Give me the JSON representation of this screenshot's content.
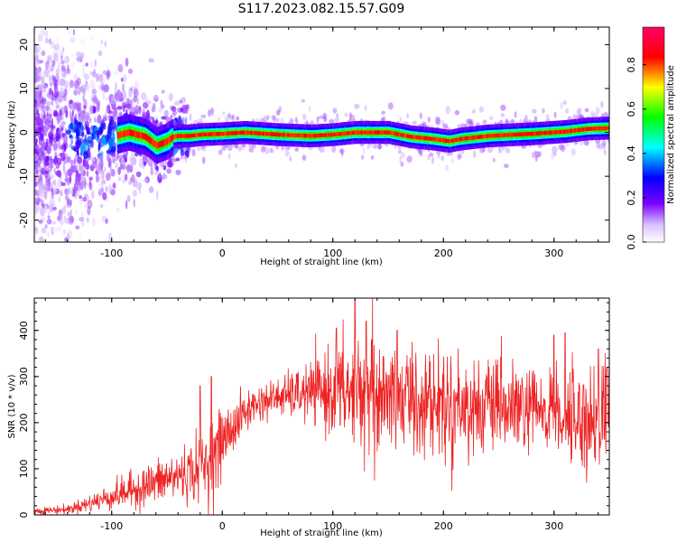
{
  "title": "S117.2023.082.15.57.G09",
  "chart_data": [
    {
      "type": "heatmap",
      "xlabel": "Height of straight line (km)",
      "ylabel": "Frequency (Hz)",
      "xlim": [
        -170,
        350
      ],
      "ylim": [
        -25,
        24
      ],
      "x_ticks": [
        -100,
        0,
        100,
        200,
        300
      ],
      "y_ticks": [
        -20,
        -10,
        0,
        10,
        20
      ],
      "colorbar": {
        "label": "Normalized spectral amplitude",
        "range": [
          0,
          0.97
        ],
        "ticks": [
          0.0,
          0.2,
          0.4,
          0.6,
          0.8
        ],
        "colormap": [
          "#ffffff",
          "#7b00ff",
          "#0000ff",
          "#00ffff",
          "#00ff00",
          "#ffff00",
          "#ff0000",
          "#ff0066"
        ]
      },
      "ridge": {
        "x": [
          -170,
          -140,
          -120,
          -100,
          -85,
          -70,
          -60,
          -50,
          -45,
          -40,
          -30,
          -20,
          0,
          20,
          50,
          80,
          100,
          120,
          150,
          170,
          190,
          205,
          215,
          240,
          280,
          310,
          330,
          350
        ],
        "y": [
          -2,
          -1,
          -2,
          -1,
          0,
          -1,
          -3,
          -2,
          -1,
          -0.8,
          -0.8,
          -0.5,
          -0.3,
          0,
          -0.5,
          -0.8,
          -0.5,
          0,
          0,
          -1,
          -1.5,
          -2,
          -1.5,
          -0.8,
          -0.3,
          0.2,
          0.8,
          1
        ]
      },
      "grid": false
    },
    {
      "type": "line",
      "xlabel": "Height of straight line (km)",
      "ylabel": "SNR (10 * v/v)",
      "xlim": [
        -170,
        350
      ],
      "ylim": [
        0,
        470
      ],
      "x_ticks": [
        -100,
        0,
        100,
        200,
        300
      ],
      "y_ticks": [
        0,
        100,
        200,
        300,
        400
      ],
      "series_color": "#ee2222",
      "envelope": {
        "x": [
          -170,
          -140,
          -120,
          -100,
          -80,
          -60,
          -40,
          -20,
          -10,
          0,
          10,
          20,
          30,
          50,
          80,
          100,
          120,
          150,
          200,
          250,
          300,
          320,
          340,
          350
        ],
        "mean": [
          8,
          12,
          25,
          40,
          55,
          70,
          85,
          100,
          120,
          160,
          190,
          220,
          240,
          255,
          265,
          270,
          265,
          260,
          240,
          230,
          220,
          210,
          210,
          250
        ],
        "spread": [
          5,
          6,
          12,
          18,
          25,
          30,
          35,
          45,
          55,
          45,
          35,
          30,
          25,
          25,
          40,
          60,
          80,
          80,
          70,
          60,
          60,
          70,
          80,
          60
        ]
      },
      "peaks": [
        {
          "x": -20,
          "y": 280
        },
        {
          "x": -10,
          "y": 300
        },
        {
          "x": 103,
          "y": 405
        },
        {
          "x": 120,
          "y": 470
        },
        {
          "x": 130,
          "y": 420
        },
        {
          "x": 135,
          "y": 380
        },
        {
          "x": 158,
          "y": 400
        },
        {
          "x": 300,
          "y": 390
        },
        {
          "x": 310,
          "y": 395
        },
        {
          "x": 340,
          "y": 360
        },
        {
          "x": 348,
          "y": 320
        }
      ],
      "grid": false
    }
  ]
}
